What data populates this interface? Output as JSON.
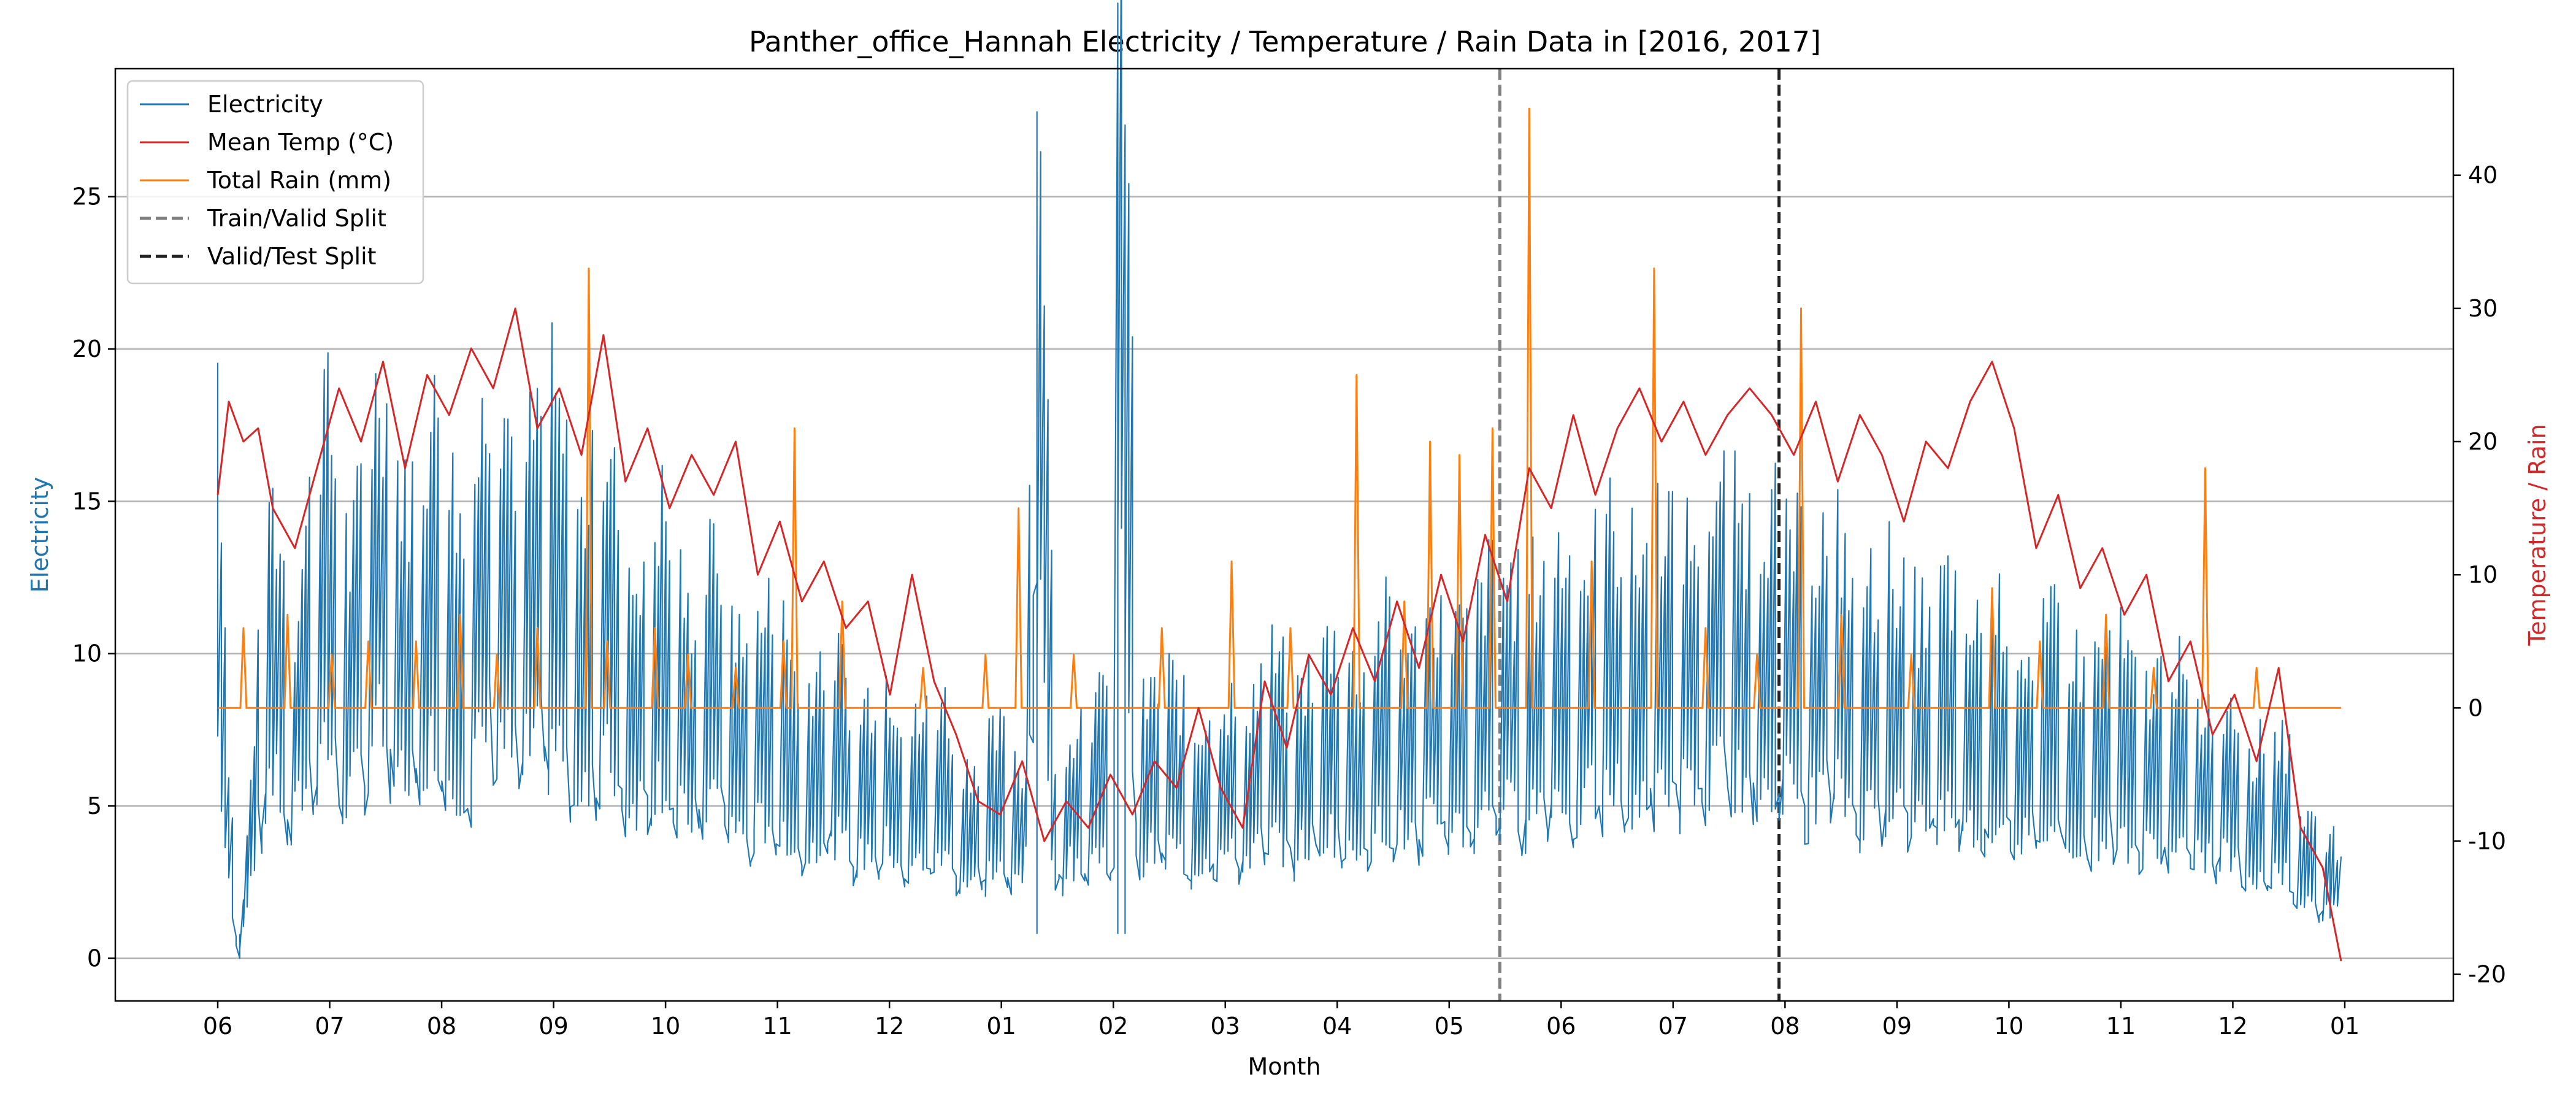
{
  "chart_data": {
    "type": "line",
    "title": "Panther_office_Hannah Electricity / Temperature / Rain Data in [2016, 2017]",
    "xlabel": "Month",
    "ylabel_left": "Electricity",
    "ylabel_right": "Temperature / Rain",
    "x_ticks": [
      "06",
      "07",
      "08",
      "09",
      "10",
      "11",
      "12",
      "01",
      "02",
      "03",
      "04",
      "05",
      "06",
      "07",
      "08",
      "09",
      "10",
      "11",
      "12",
      "01"
    ],
    "x_range": [
      "2016-06-01",
      "2018-01-01"
    ],
    "ylim_left": [
      -1.4,
      29.2
    ],
    "yticks_left": [
      0,
      5,
      10,
      15,
      20,
      25
    ],
    "ylim_right": [
      -22,
      48
    ],
    "yticks_right": [
      -20,
      -10,
      0,
      10,
      20,
      30,
      40
    ],
    "grid": "horizontal",
    "legend_position": "top-left",
    "colors": {
      "electricity": "#1f77b4",
      "temp": "#d62728",
      "rain": "#ff7f0e",
      "train_valid": "#7f7f7f",
      "valid_test": "#222222"
    },
    "split_lines": [
      {
        "name": "Train/Valid Split",
        "date": "2017-05-16",
        "style": "dashed"
      },
      {
        "name": "Valid/Test Split",
        "date": "2017-07-31",
        "style": "dashed"
      }
    ],
    "series": [
      {
        "name": "Electricity",
        "axis": "left",
        "points": [
          [
            "2016-06-01",
            16.0
          ],
          [
            "2016-06-04",
            5.5
          ],
          [
            "2016-06-07",
            0.0
          ],
          [
            "2016-06-15",
            12.5
          ],
          [
            "2016-06-22",
            9.0
          ],
          [
            "2016-06-30",
            15.0
          ],
          [
            "2016-07-07",
            10.5
          ],
          [
            "2016-07-15",
            15.5
          ],
          [
            "2016-07-22",
            12.0
          ],
          [
            "2016-07-31",
            14.5
          ],
          [
            "2016-08-07",
            11.0
          ],
          [
            "2016-08-15",
            16.0
          ],
          [
            "2016-08-22",
            13.0
          ],
          [
            "2016-08-31",
            15.0
          ],
          [
            "2016-09-07",
            11.5
          ],
          [
            "2016-09-15",
            13.5
          ],
          [
            "2016-09-22",
            10.0
          ],
          [
            "2016-09-30",
            12.0
          ],
          [
            "2016-10-07",
            9.0
          ],
          [
            "2016-10-15",
            11.0
          ],
          [
            "2016-10-22",
            8.0
          ],
          [
            "2016-10-31",
            9.5
          ],
          [
            "2016-11-07",
            7.0
          ],
          [
            "2016-11-15",
            8.5
          ],
          [
            "2016-11-22",
            6.5
          ],
          [
            "2016-11-30",
            7.5
          ],
          [
            "2016-12-07",
            6.0
          ],
          [
            "2016-12-15",
            7.0
          ],
          [
            "2016-12-22",
            5.0
          ],
          [
            "2016-12-31",
            6.0
          ],
          [
            "2017-01-07",
            5.0
          ],
          [
            "2017-01-10",
            27.8
          ],
          [
            "2017-01-15",
            5.5
          ],
          [
            "2017-01-22",
            6.5
          ],
          [
            "2017-01-31",
            7.0
          ],
          [
            "2017-02-01",
            25.0
          ],
          [
            "2017-02-03",
            24.2
          ],
          [
            "2017-02-07",
            6.5
          ],
          [
            "2017-02-15",
            7.5
          ],
          [
            "2017-02-22",
            6.0
          ],
          [
            "2017-02-28",
            7.0
          ],
          [
            "2017-03-07",
            6.5
          ],
          [
            "2017-03-15",
            8.0
          ],
          [
            "2017-03-22",
            7.0
          ],
          [
            "2017-03-31",
            8.5
          ],
          [
            "2017-04-07",
            7.5
          ],
          [
            "2017-04-15",
            9.0
          ],
          [
            "2017-04-22",
            8.0
          ],
          [
            "2017-04-30",
            9.5
          ],
          [
            "2017-05-07",
            8.5
          ],
          [
            "2017-05-15",
            10.5
          ],
          [
            "2017-05-22",
            9.5
          ],
          [
            "2017-05-31",
            11.0
          ],
          [
            "2017-06-07",
            10.0
          ],
          [
            "2017-06-15",
            11.5
          ],
          [
            "2017-06-22",
            10.5
          ],
          [
            "2017-06-30",
            12.0
          ],
          [
            "2017-07-07",
            11.0
          ],
          [
            "2017-07-15",
            12.5
          ],
          [
            "2017-07-22",
            11.5
          ],
          [
            "2017-07-31",
            12.0
          ],
          [
            "2017-08-07",
            10.5
          ],
          [
            "2017-08-15",
            11.5
          ],
          [
            "2017-08-22",
            9.5
          ],
          [
            "2017-08-31",
            10.5
          ],
          [
            "2017-09-07",
            9.0
          ],
          [
            "2017-09-15",
            10.0
          ],
          [
            "2017-09-22",
            8.5
          ],
          [
            "2017-09-30",
            9.5
          ],
          [
            "2017-10-07",
            8.0
          ],
          [
            "2017-10-15",
            9.0
          ],
          [
            "2017-10-22",
            7.5
          ],
          [
            "2017-10-31",
            8.5
          ],
          [
            "2017-11-07",
            7.0
          ],
          [
            "2017-11-15",
            8.0
          ],
          [
            "2017-11-22",
            6.5
          ],
          [
            "2017-11-30",
            7.0
          ],
          [
            "2017-12-07",
            5.5
          ],
          [
            "2017-12-15",
            6.0
          ],
          [
            "2017-12-22",
            3.5
          ],
          [
            "2017-12-31",
            3.0
          ]
        ]
      },
      {
        "name": "Mean Temp (°C)",
        "axis": "right",
        "points": [
          [
            "2016-06-01",
            16
          ],
          [
            "2016-06-04",
            23
          ],
          [
            "2016-06-08",
            20
          ],
          [
            "2016-06-12",
            21
          ],
          [
            "2016-06-16",
            15
          ],
          [
            "2016-06-22",
            12
          ],
          [
            "2016-06-28",
            18
          ],
          [
            "2016-07-04",
            24
          ],
          [
            "2016-07-10",
            20
          ],
          [
            "2016-07-16",
            26
          ],
          [
            "2016-07-22",
            18
          ],
          [
            "2016-07-28",
            25
          ],
          [
            "2016-08-03",
            22
          ],
          [
            "2016-08-09",
            27
          ],
          [
            "2016-08-15",
            24
          ],
          [
            "2016-08-21",
            30
          ],
          [
            "2016-08-27",
            21
          ],
          [
            "2016-09-02",
            24
          ],
          [
            "2016-09-08",
            19
          ],
          [
            "2016-09-14",
            28
          ],
          [
            "2016-09-20",
            17
          ],
          [
            "2016-09-26",
            21
          ],
          [
            "2016-10-02",
            15
          ],
          [
            "2016-10-08",
            19
          ],
          [
            "2016-10-14",
            16
          ],
          [
            "2016-10-20",
            20
          ],
          [
            "2016-10-26",
            10
          ],
          [
            "2016-11-01",
            14
          ],
          [
            "2016-11-07",
            8
          ],
          [
            "2016-11-13",
            11
          ],
          [
            "2016-11-19",
            6
          ],
          [
            "2016-11-25",
            8
          ],
          [
            "2016-12-01",
            1
          ],
          [
            "2016-12-07",
            10
          ],
          [
            "2016-12-13",
            2
          ],
          [
            "2016-12-19",
            -2
          ],
          [
            "2016-12-25",
            -7
          ],
          [
            "2016-12-31",
            -8
          ],
          [
            "2017-01-06",
            -4
          ],
          [
            "2017-01-12",
            -10
          ],
          [
            "2017-01-18",
            -7
          ],
          [
            "2017-01-24",
            -9
          ],
          [
            "2017-01-30",
            -5
          ],
          [
            "2017-02-05",
            -8
          ],
          [
            "2017-02-11",
            -4
          ],
          [
            "2017-02-17",
            -6
          ],
          [
            "2017-02-23",
            0
          ],
          [
            "2017-03-01",
            -6
          ],
          [
            "2017-03-07",
            -9
          ],
          [
            "2017-03-13",
            2
          ],
          [
            "2017-03-19",
            -3
          ],
          [
            "2017-03-25",
            4
          ],
          [
            "2017-03-31",
            1
          ],
          [
            "2017-04-06",
            6
          ],
          [
            "2017-04-12",
            2
          ],
          [
            "2017-04-18",
            8
          ],
          [
            "2017-04-24",
            3
          ],
          [
            "2017-04-30",
            10
          ],
          [
            "2017-05-06",
            5
          ],
          [
            "2017-05-12",
            13
          ],
          [
            "2017-05-18",
            8
          ],
          [
            "2017-05-24",
            18
          ],
          [
            "2017-05-30",
            15
          ],
          [
            "2017-06-05",
            22
          ],
          [
            "2017-06-11",
            16
          ],
          [
            "2017-06-17",
            21
          ],
          [
            "2017-06-23",
            24
          ],
          [
            "2017-06-29",
            20
          ],
          [
            "2017-07-05",
            23
          ],
          [
            "2017-07-11",
            19
          ],
          [
            "2017-07-17",
            22
          ],
          [
            "2017-07-23",
            24
          ],
          [
            "2017-07-29",
            22
          ],
          [
            "2017-08-04",
            19
          ],
          [
            "2017-08-10",
            23
          ],
          [
            "2017-08-16",
            17
          ],
          [
            "2017-08-22",
            22
          ],
          [
            "2017-08-28",
            19
          ],
          [
            "2017-09-03",
            14
          ],
          [
            "2017-09-09",
            20
          ],
          [
            "2017-09-15",
            18
          ],
          [
            "2017-09-21",
            23
          ],
          [
            "2017-09-27",
            26
          ],
          [
            "2017-10-03",
            21
          ],
          [
            "2017-10-09",
            12
          ],
          [
            "2017-10-15",
            16
          ],
          [
            "2017-10-21",
            9
          ],
          [
            "2017-10-27",
            12
          ],
          [
            "2017-11-02",
            7
          ],
          [
            "2017-11-08",
            10
          ],
          [
            "2017-11-14",
            2
          ],
          [
            "2017-11-20",
            5
          ],
          [
            "2017-11-26",
            -2
          ],
          [
            "2017-12-02",
            1
          ],
          [
            "2017-12-08",
            -4
          ],
          [
            "2017-12-14",
            3
          ],
          [
            "2017-12-20",
            -9
          ],
          [
            "2017-12-26",
            -12
          ],
          [
            "2017-12-31",
            -19
          ]
        ]
      },
      {
        "name": "Total Rain (mm)",
        "axis": "right",
        "baseline": 0,
        "spikes": [
          [
            "2016-06-08",
            6
          ],
          [
            "2016-06-20",
            7
          ],
          [
            "2016-07-02",
            4
          ],
          [
            "2016-07-12",
            5
          ],
          [
            "2016-07-25",
            5
          ],
          [
            "2016-08-06",
            7
          ],
          [
            "2016-08-16",
            4
          ],
          [
            "2016-08-27",
            6
          ],
          [
            "2016-09-10",
            33
          ],
          [
            "2016-09-15",
            5
          ],
          [
            "2016-09-28",
            6
          ],
          [
            "2016-10-07",
            4
          ],
          [
            "2016-10-20",
            3
          ],
          [
            "2016-11-02",
            5
          ],
          [
            "2016-11-05",
            21
          ],
          [
            "2016-11-18",
            8
          ],
          [
            "2016-12-10",
            3
          ],
          [
            "2016-12-27",
            4
          ],
          [
            "2017-01-05",
            15
          ],
          [
            "2017-01-20",
            4
          ],
          [
            "2017-02-13",
            6
          ],
          [
            "2017-03-04",
            11
          ],
          [
            "2017-03-20",
            6
          ],
          [
            "2017-04-07",
            25
          ],
          [
            "2017-04-20",
            8
          ],
          [
            "2017-04-27",
            20
          ],
          [
            "2017-05-05",
            19
          ],
          [
            "2017-05-14",
            21
          ],
          [
            "2017-05-24",
            45
          ],
          [
            "2017-06-10",
            11
          ],
          [
            "2017-06-27",
            33
          ],
          [
            "2017-07-11",
            6
          ],
          [
            "2017-07-25",
            4
          ],
          [
            "2017-08-06",
            30
          ],
          [
            "2017-08-17",
            7
          ],
          [
            "2017-09-05",
            4
          ],
          [
            "2017-09-27",
            9
          ],
          [
            "2017-10-10",
            5
          ],
          [
            "2017-10-28",
            7
          ],
          [
            "2017-11-10",
            3
          ],
          [
            "2017-11-24",
            18
          ],
          [
            "2017-12-08",
            3
          ]
        ]
      }
    ],
    "legend": [
      {
        "label": "Electricity",
        "style": "solid",
        "color": "#1f77b4"
      },
      {
        "label": "Mean Temp (°C)",
        "style": "solid",
        "color": "#d62728"
      },
      {
        "label": "Total Rain (mm)",
        "style": "solid",
        "color": "#ff7f0e"
      },
      {
        "label": "Train/Valid Split",
        "style": "dashed",
        "color": "#7f7f7f"
      },
      {
        "label": "Valid/Test Split",
        "style": "dashed",
        "color": "#222222"
      }
    ]
  }
}
